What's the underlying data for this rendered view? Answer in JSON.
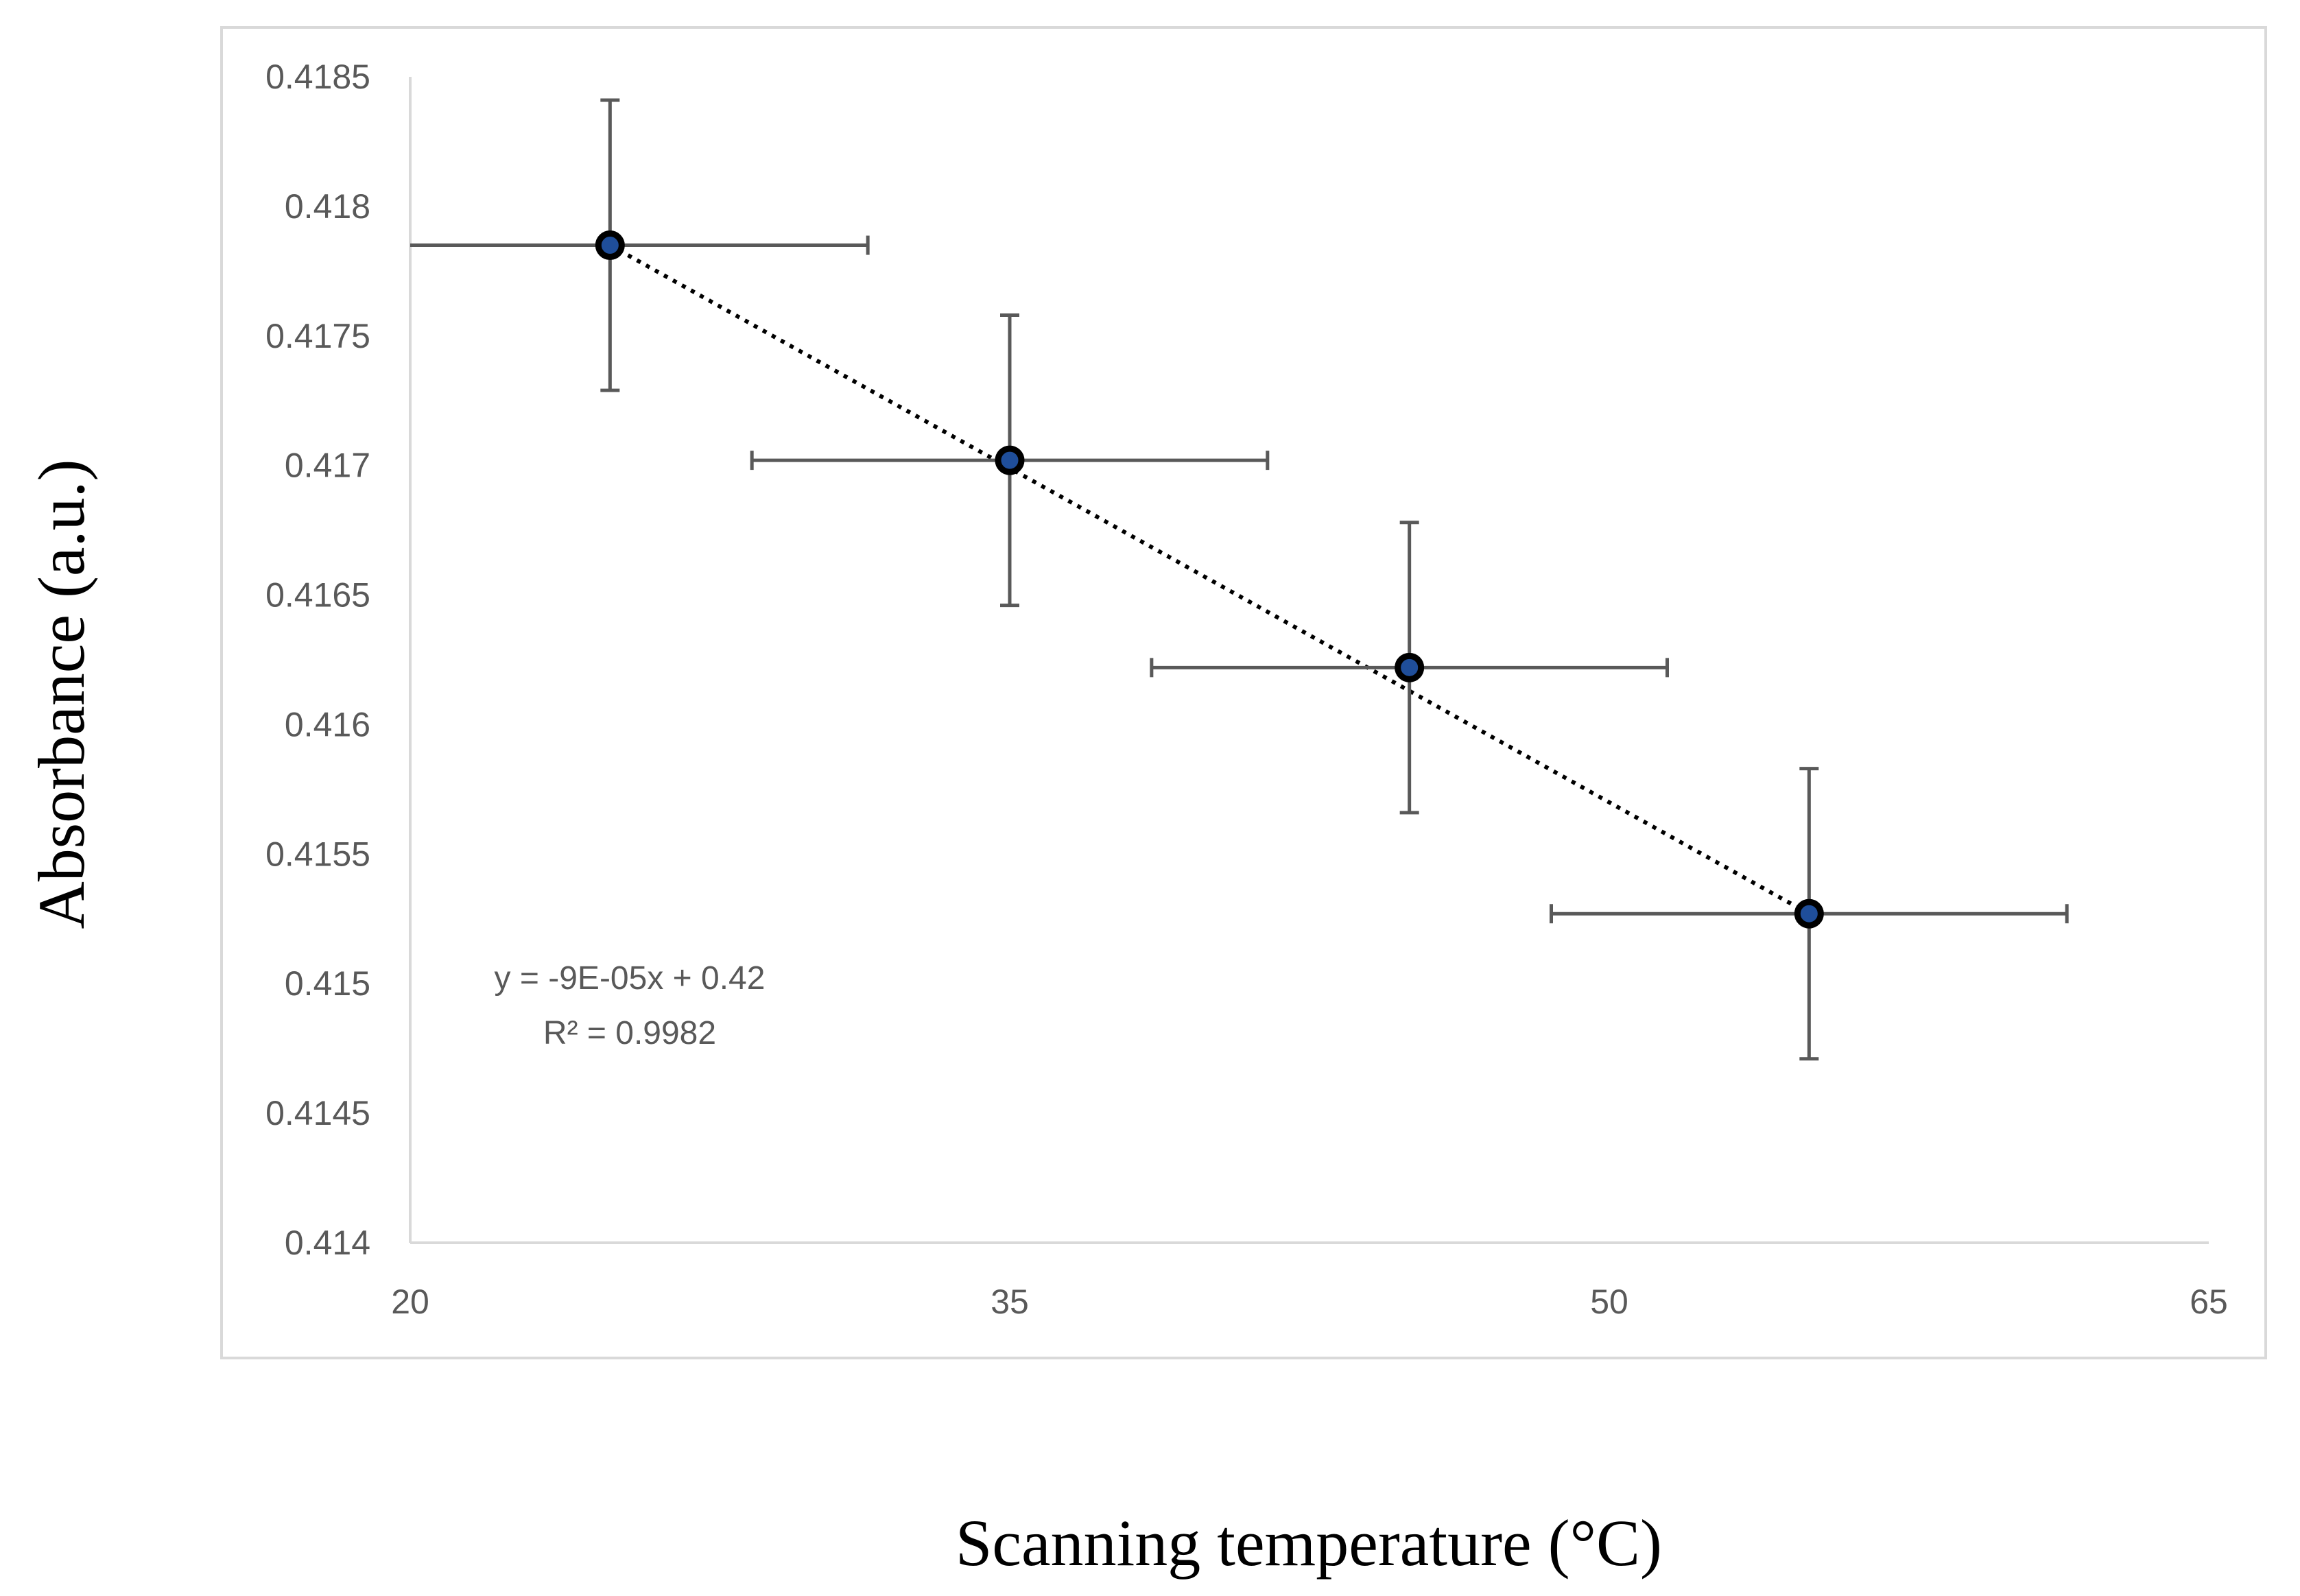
{
  "chart_data": {
    "type": "scatter",
    "title": "",
    "xlabel": "Scanning  temperature  (°C)",
    "ylabel": "Absorbance  (a.u.)",
    "xlim": [
      20,
      65
    ],
    "ylim": [
      0.414,
      0.4185
    ],
    "x_ticks": [
      20,
      35,
      50,
      65
    ],
    "x_tick_labels": [
      "20",
      "35",
      "50",
      "65"
    ],
    "y_ticks": [
      0.414,
      0.4145,
      0.415,
      0.4155,
      0.416,
      0.4165,
      0.417,
      0.4175,
      0.418,
      0.4185
    ],
    "y_tick_labels": [
      "0.414",
      "0.4145",
      "0.415",
      "0.4155",
      "0.416",
      "0.4165",
      "0.417",
      "0.4175",
      "0.418",
      "0.4185"
    ],
    "grid": false,
    "legend": "none",
    "series": [
      {
        "name": "Absorbance",
        "x": [
          25,
          35,
          45,
          55
        ],
        "y": [
          0.41785,
          0.41702,
          0.41622,
          0.41527
        ],
        "x_error": [
          6.45,
          6.45,
          6.45,
          6.45
        ],
        "y_error": [
          0.00056,
          0.00056,
          0.00056,
          0.00056
        ],
        "marker_color": "#1f4e9a",
        "marker_edge_color": "#000000"
      }
    ],
    "trendline": {
      "type": "linear",
      "x_range": [
        25,
        55
      ],
      "y_range": [
        0.41785,
        0.41527
      ],
      "color": "#000000",
      "style": "dotted",
      "equation": "y = -9E-05x + 0.42",
      "r_squared": "R² = 0.9982"
    },
    "colors": {
      "axis": "#d9d9d9",
      "error_bar": "#595959",
      "tick_label": "#595959",
      "frame": "#d9d9d9"
    }
  }
}
